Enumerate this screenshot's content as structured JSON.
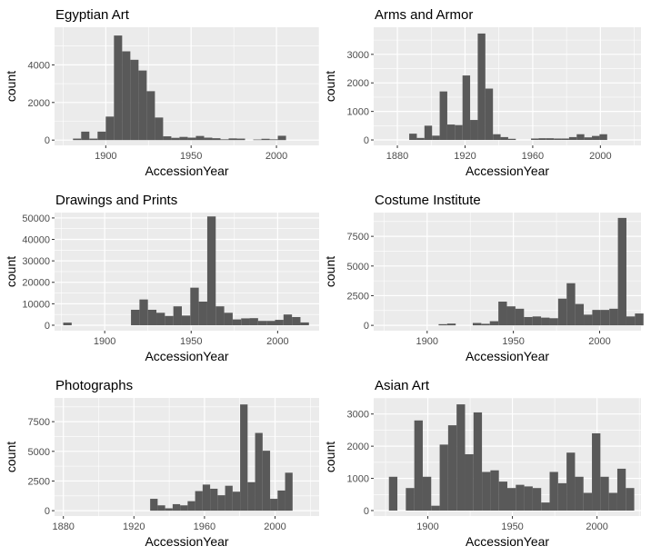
{
  "colors": {
    "panel_bg": "#ebebeb",
    "grid": "#ffffff",
    "bar_fill": "#595959",
    "tick_text": "#4d4d4d"
  },
  "chart_data": [
    {
      "type": "bar",
      "title": "Egyptian Art",
      "xlabel": "AccessionYear",
      "ylabel": "count",
      "xlim": [
        1870,
        2025
      ],
      "ylim": [
        -280,
        6000
      ],
      "xticks": [
        1900,
        1950,
        2000
      ],
      "yticks": [
        0,
        2000,
        4000
      ],
      "bin_start": 1876,
      "bin_width": 4.8,
      "counts": [
        0,
        80,
        450,
        80,
        450,
        1250,
        5560,
        4720,
        4270,
        3700,
        2600,
        1200,
        200,
        120,
        170,
        130,
        220,
        130,
        100,
        40,
        90,
        80,
        0,
        30,
        70,
        40,
        230,
        0,
        0,
        0
      ]
    },
    {
      "type": "bar",
      "title": "Arms and Armor",
      "xlabel": "AccessionYear",
      "ylabel": "count",
      "xlim": [
        1866,
        2024
      ],
      "ylim": [
        -190,
        3950
      ],
      "xticks": [
        1880,
        1920,
        1960,
        2000
      ],
      "yticks": [
        0,
        1000,
        2000,
        3000
      ],
      "bin_start": 1887,
      "bin_width": 4.5,
      "counts": [
        220,
        70,
        500,
        150,
        1700,
        540,
        520,
        2260,
        700,
        3730,
        1800,
        200,
        100,
        40,
        0,
        0,
        50,
        60,
        60,
        50,
        50,
        100,
        200,
        90,
        140,
        200,
        0,
        0,
        0,
        0
      ]
    },
    {
      "type": "bar",
      "title": "Drawings and Prints",
      "xlabel": "AccessionYear",
      "ylabel": "count",
      "xlim": [
        1871,
        2024
      ],
      "ylim": [
        -2550,
        52500
      ],
      "xticks": [
        1900,
        1950,
        2000
      ],
      "yticks": [
        0,
        10000,
        20000,
        30000,
        40000,
        50000
      ],
      "bin_start": 1876,
      "bin_width": 4.9,
      "counts": [
        1200,
        0,
        0,
        0,
        0,
        0,
        0,
        0,
        7200,
        12000,
        7200,
        5800,
        4300,
        8800,
        4500,
        17500,
        11000,
        50700,
        8800,
        5800,
        2700,
        3200,
        3300,
        2000,
        2000,
        2500,
        5000,
        3800,
        1300,
        0
      ]
    },
    {
      "type": "bar",
      "title": "Costume Institute",
      "xlabel": "AccessionYear",
      "ylabel": "count",
      "xlim": [
        1869,
        2024
      ],
      "ylim": [
        -450,
        9500
      ],
      "xticks": [
        1900,
        1950,
        2000
      ],
      "yticks": [
        0,
        2500,
        5000,
        7500
      ],
      "bin_start": 1872,
      "bin_width": 4.95,
      "counts": [
        0,
        0,
        0,
        0,
        0,
        0,
        0,
        100,
        150,
        0,
        0,
        200,
        130,
        350,
        2000,
        1600,
        1400,
        700,
        750,
        650,
        600,
        2250,
        3550,
        1800,
        900,
        1300,
        1300,
        1400,
        9050,
        750,
        1000
      ]
    },
    {
      "type": "bar",
      "title": "Photographs",
      "xlabel": "AccessionYear",
      "ylabel": "count",
      "xlim": [
        1875,
        2025
      ],
      "ylim": [
        -450,
        9500
      ],
      "xticks": [
        1880,
        1920,
        1960,
        2000
      ],
      "yticks": [
        0,
        2500,
        5000,
        7500
      ],
      "bin_start": 1929.2,
      "bin_width": 4.25,
      "counts": [
        1000,
        450,
        200,
        550,
        450,
        800,
        1650,
        2200,
        1850,
        1300,
        2100,
        1600,
        8950,
        2400,
        6550,
        5050,
        1000,
        1700,
        3200
      ]
    },
    {
      "type": "bar",
      "title": "Asian Art",
      "xlabel": "AccessionYear",
      "ylabel": "count",
      "xlim": [
        1868,
        2026
      ],
      "ylim": [
        -170,
        3500
      ],
      "xticks": [
        1900,
        1950,
        2000
      ],
      "yticks": [
        0,
        1000,
        2000,
        3000
      ],
      "bin_start": 1877,
      "bin_width": 5.0,
      "counts": [
        1050,
        0,
        700,
        2800,
        1050,
        150,
        2050,
        2650,
        3300,
        1750,
        3050,
        1200,
        1250,
        900,
        700,
        800,
        750,
        700,
        250,
        1200,
        850,
        1800,
        1050,
        550,
        2400,
        1050,
        550,
        1300,
        700
      ]
    }
  ]
}
